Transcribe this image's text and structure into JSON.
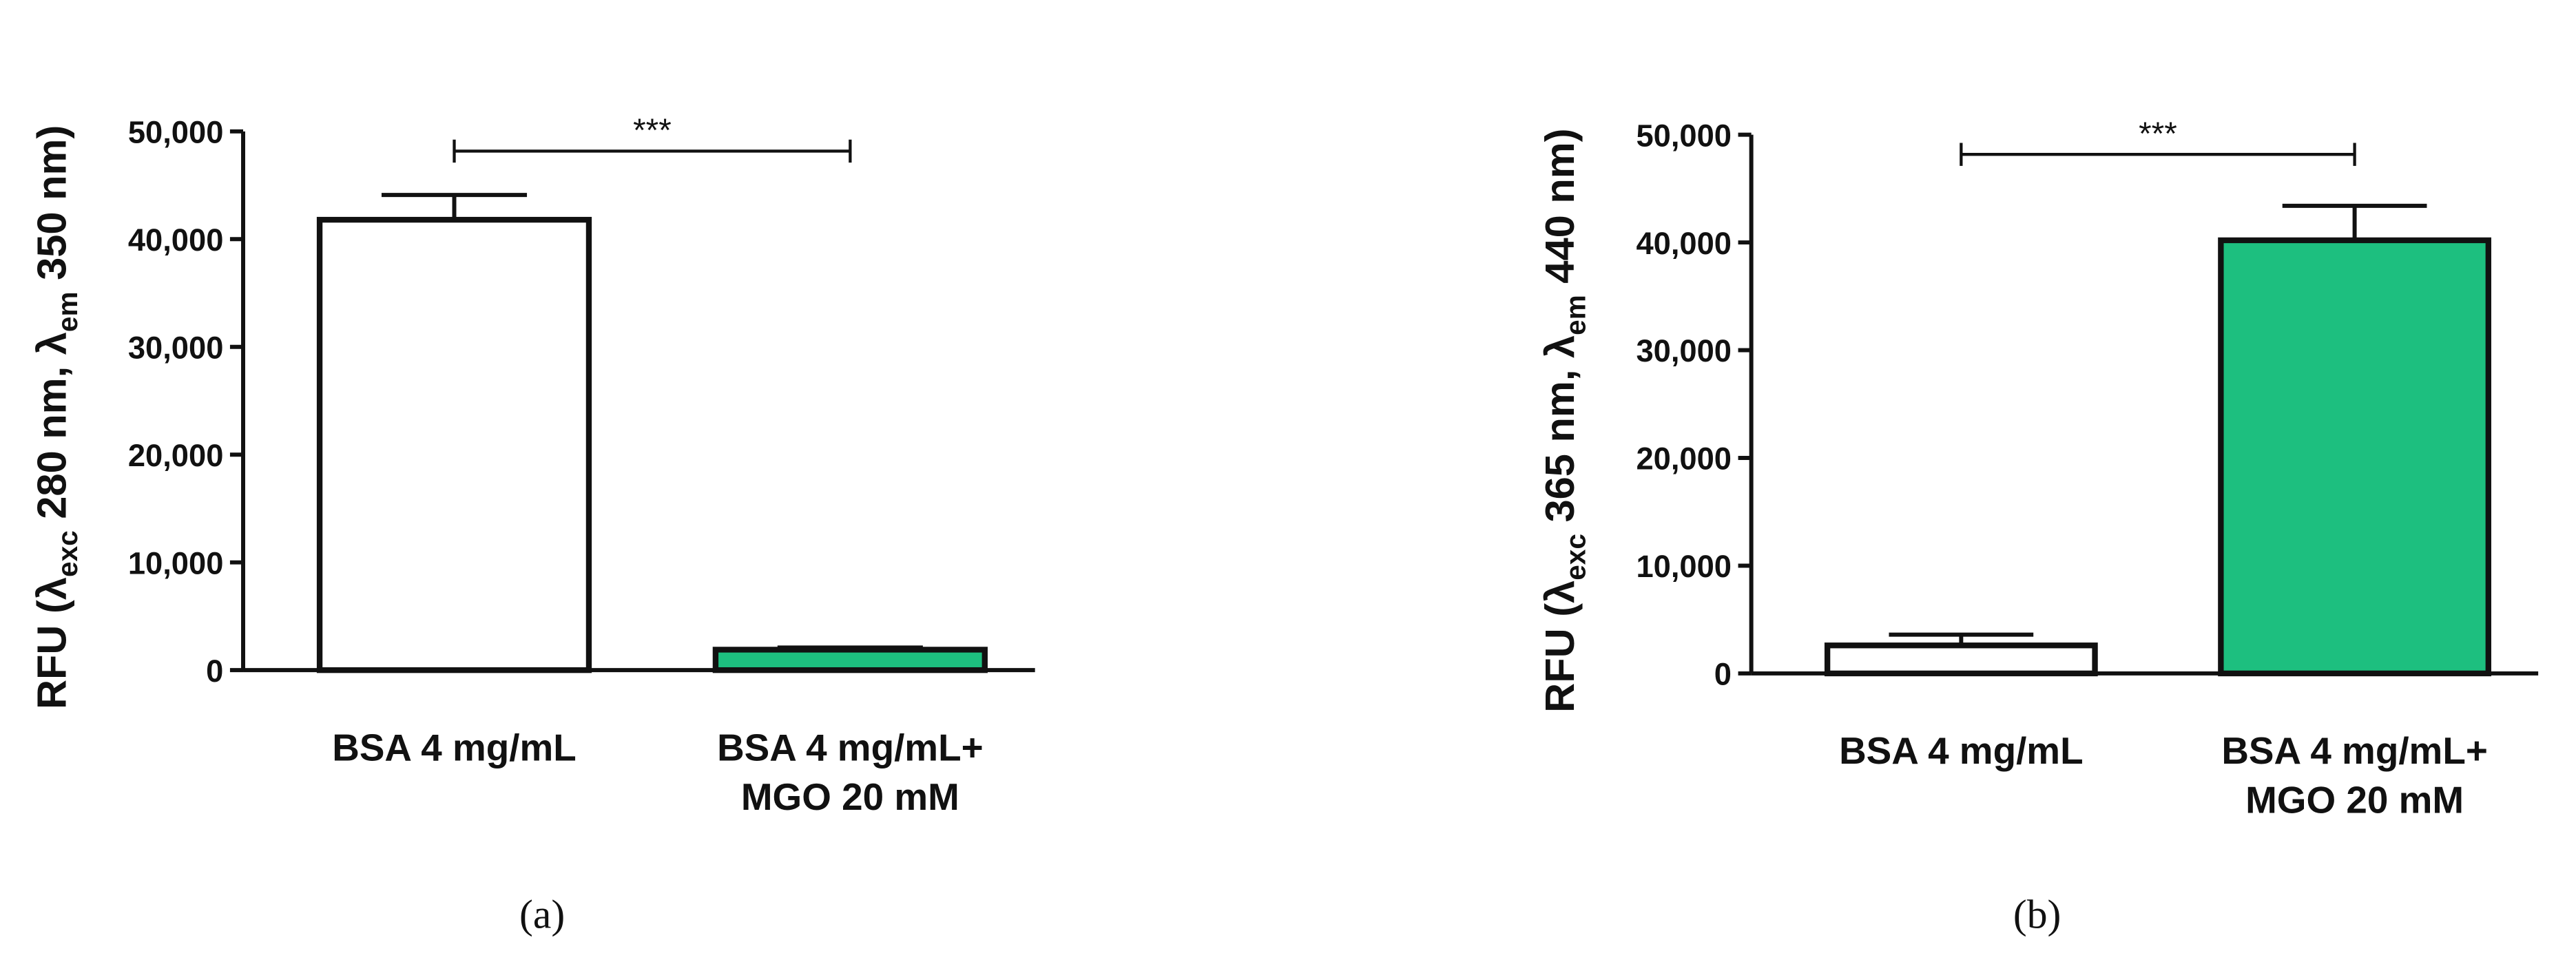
{
  "chart_data": [
    {
      "type": "bar",
      "panel": "(a)",
      "ylabel": [
        "RFU (λ",
        "exc",
        " 280 nm, λ",
        "em",
        " 350 nm)"
      ],
      "categories": [
        [
          "BSA 4 mg/mL"
        ],
        [
          "BSA 4 mg/mL+",
          "MGO 20 mM"
        ]
      ],
      "values": [
        41800,
        1900
      ],
      "errors": [
        2300,
        200
      ],
      "colors": [
        "#ffffff",
        "#1dbf7f"
      ],
      "ylim": [
        0,
        50000
      ],
      "yticks": [
        0,
        {
          "value": 10000,
          "label": "10,000"
        },
        {
          "value": 20000,
          "label": "20,000"
        },
        {
          "value": 30000,
          "label": "30,000"
        },
        {
          "value": 40000,
          "label": "40,000"
        },
        {
          "value": 50000,
          "label": "50,000"
        }
      ],
      "annotation": "***"
    },
    {
      "type": "bar",
      "panel": "(b)",
      "ylabel": [
        "RFU (λ",
        "exc",
        " 365 nm, λ",
        "em",
        " 440 nm)"
      ],
      "categories": [
        [
          "BSA 4 mg/mL"
        ],
        [
          "BSA 4 mg/mL+",
          "MGO 20 mM"
        ]
      ],
      "values": [
        2600,
        40200
      ],
      "errors": [
        1000,
        3200
      ],
      "colors": [
        "#ffffff",
        "#1dbf7f"
      ],
      "ylim": [
        0,
        50000
      ],
      "yticks": [
        0,
        {
          "value": 10000,
          "label": "10,000"
        },
        {
          "value": 20000,
          "label": "20,000"
        },
        {
          "value": 30000,
          "label": "30,000"
        },
        {
          "value": 40000,
          "label": "40,000"
        },
        {
          "value": 50000,
          "label": "50,000"
        }
      ],
      "annotation": "***"
    }
  ]
}
